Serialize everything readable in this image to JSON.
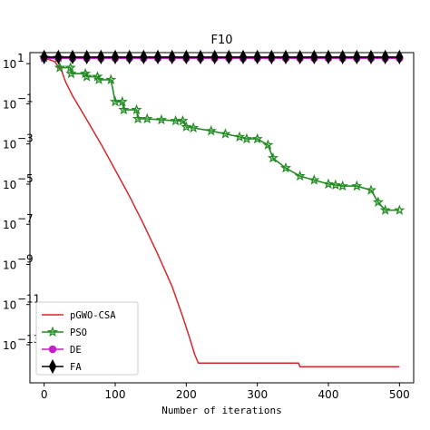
{
  "chart_data": {
    "type": "line",
    "title": "F10",
    "xlabel": "Number of iterations",
    "ylabel": "",
    "y_scale": "log",
    "xlim": [
      -20,
      520
    ],
    "ylim_log10": [
      -14.9,
      1.55
    ],
    "x_ticks": [
      0,
      100,
      200,
      300,
      400,
      500
    ],
    "x_tick_labels": [
      "0",
      "100",
      "200",
      "300",
      "400",
      "500"
    ],
    "y_ticks_log10": [
      1,
      -1,
      -3,
      -5,
      -7,
      -9,
      -11,
      -13
    ],
    "y_tick_labels": [
      "10",
      "10",
      "10",
      "10",
      "10",
      "10",
      "10",
      "10"
    ],
    "y_tick_exponents": [
      "1",
      "−1",
      "−3",
      "−5",
      "−7",
      "−9",
      "−11",
      "−13"
    ],
    "legend": {
      "position": "lower-left",
      "entries": [
        "pGWO-CSA",
        "PSO",
        "DE",
        "FA"
      ]
    },
    "grid": false,
    "series": [
      {
        "name": "pGWO-CSA",
        "color": "#d62728",
        "marker": "none",
        "points_log10": [
          [
            0,
            1.3
          ],
          [
            15,
            1.1
          ],
          [
            25,
            0.6
          ],
          [
            30,
            0.1
          ],
          [
            40,
            -0.6
          ],
          [
            60,
            -1.8
          ],
          [
            80,
            -3.0
          ],
          [
            100,
            -4.3
          ],
          [
            120,
            -5.6
          ],
          [
            140,
            -7.0
          ],
          [
            160,
            -8.5
          ],
          [
            180,
            -10.1
          ],
          [
            195,
            -11.6
          ],
          [
            205,
            -12.7
          ],
          [
            212,
            -13.5
          ],
          [
            217,
            -13.92
          ],
          [
            250,
            -13.92
          ],
          [
            300,
            -13.92
          ],
          [
            358,
            -13.92
          ],
          [
            360,
            -14.1
          ],
          [
            400,
            -14.1
          ],
          [
            500,
            -14.1
          ]
        ]
      },
      {
        "name": "PSO",
        "color": "#228b22",
        "marker": "star",
        "points_log10": [
          [
            0,
            1.3
          ],
          [
            20,
            1.3
          ],
          [
            22,
            0.8
          ],
          [
            37,
            0.8
          ],
          [
            38,
            0.5
          ],
          [
            58,
            0.5
          ],
          [
            60,
            0.35
          ],
          [
            75,
            0.35
          ],
          [
            77,
            0.2
          ],
          [
            94,
            0.2
          ],
          [
            100,
            -0.9
          ],
          [
            110,
            -0.9
          ],
          [
            112,
            -1.3
          ],
          [
            130,
            -1.3
          ],
          [
            132,
            -1.75
          ],
          [
            145,
            -1.75
          ],
          [
            165,
            -1.8
          ],
          [
            185,
            -1.85
          ],
          [
            195,
            -1.85
          ],
          [
            200,
            -2.15
          ],
          [
            210,
            -2.2
          ],
          [
            235,
            -2.35
          ],
          [
            255,
            -2.5
          ],
          [
            275,
            -2.65
          ],
          [
            285,
            -2.75
          ],
          [
            300,
            -2.75
          ],
          [
            315,
            -3.05
          ],
          [
            322,
            -3.7
          ],
          [
            340,
            -4.2
          ],
          [
            360,
            -4.6
          ],
          [
            380,
            -4.8
          ],
          [
            400,
            -5.0
          ],
          [
            410,
            -5.05
          ],
          [
            420,
            -5.1
          ],
          [
            440,
            -5.1
          ],
          [
            460,
            -5.3
          ],
          [
            470,
            -5.9
          ],
          [
            480,
            -6.3
          ],
          [
            500,
            -6.3
          ]
        ]
      },
      {
        "name": "DE",
        "color": "#c81ec8",
        "marker": "circle",
        "points_log10": [
          [
            0,
            1.27
          ],
          [
            20,
            1.27
          ],
          [
            40,
            1.27
          ],
          [
            60,
            1.27
          ],
          [
            80,
            1.27
          ],
          [
            100,
            1.27
          ],
          [
            120,
            1.27
          ],
          [
            140,
            1.27
          ],
          [
            160,
            1.27
          ],
          [
            180,
            1.27
          ],
          [
            200,
            1.27
          ],
          [
            220,
            1.27
          ],
          [
            240,
            1.27
          ],
          [
            260,
            1.27
          ],
          [
            280,
            1.27
          ],
          [
            300,
            1.27
          ],
          [
            320,
            1.27
          ],
          [
            340,
            1.27
          ],
          [
            360,
            1.27
          ],
          [
            380,
            1.27
          ],
          [
            400,
            1.27
          ],
          [
            420,
            1.27
          ],
          [
            440,
            1.27
          ],
          [
            460,
            1.27
          ],
          [
            480,
            1.27
          ],
          [
            500,
            1.27
          ]
        ]
      },
      {
        "name": "FA",
        "color": "#000000",
        "marker": "thin-diamond",
        "points_log10": [
          [
            0,
            1.33
          ],
          [
            20,
            1.33
          ],
          [
            40,
            1.33
          ],
          [
            60,
            1.33
          ],
          [
            80,
            1.33
          ],
          [
            100,
            1.33
          ],
          [
            120,
            1.33
          ],
          [
            140,
            1.33
          ],
          [
            160,
            1.33
          ],
          [
            180,
            1.33
          ],
          [
            200,
            1.33
          ],
          [
            220,
            1.33
          ],
          [
            240,
            1.33
          ],
          [
            260,
            1.33
          ],
          [
            280,
            1.33
          ],
          [
            300,
            1.33
          ],
          [
            320,
            1.33
          ],
          [
            340,
            1.33
          ],
          [
            360,
            1.33
          ],
          [
            380,
            1.33
          ],
          [
            400,
            1.33
          ],
          [
            420,
            1.33
          ],
          [
            440,
            1.33
          ],
          [
            460,
            1.33
          ],
          [
            480,
            1.33
          ],
          [
            500,
            1.33
          ]
        ]
      }
    ]
  }
}
